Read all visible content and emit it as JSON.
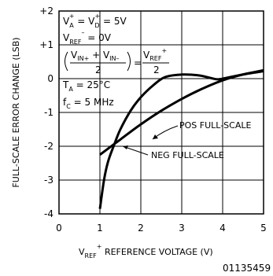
{
  "chart_data": {
    "type": "line",
    "title": "",
    "xlabel": {
      "main": "V",
      "sub": "REF",
      "sup": "+",
      "rest": "  REFERENCE VOLTAGE (V)"
    },
    "ylabel": "FULL-SCALE ERROR CHANGE (LSB)",
    "xlim": [
      0,
      5
    ],
    "ylim": [
      -4,
      2
    ],
    "x_ticks": [
      "0",
      "1",
      "2",
      "3",
      "4",
      "5"
    ],
    "y_ticks": [
      "-4",
      "-3",
      "-2",
      "-1",
      "0",
      "+1",
      "+2"
    ],
    "grid": true,
    "series": [
      {
        "name": "POS FULL-SCALE",
        "points": [
          [
            1.0,
            -2.25
          ],
          [
            1.5,
            -1.8
          ],
          [
            2.0,
            -1.35
          ],
          [
            2.5,
            -0.95
          ],
          [
            3.0,
            -0.6
          ],
          [
            3.5,
            -0.3
          ],
          [
            4.0,
            -0.05
          ],
          [
            4.5,
            0.12
          ],
          [
            5.0,
            0.22
          ]
        ]
      },
      {
        "name": "NEG FULL-SCALE",
        "points": [
          [
            1.0,
            -3.85
          ],
          [
            1.1,
            -3.0
          ],
          [
            1.2,
            -2.45
          ],
          [
            1.35,
            -1.95
          ],
          [
            1.5,
            -1.5
          ],
          [
            1.75,
            -0.95
          ],
          [
            2.0,
            -0.55
          ],
          [
            2.3,
            -0.2
          ],
          [
            2.6,
            0.05
          ],
          [
            3.0,
            0.12
          ],
          [
            3.4,
            0.1
          ],
          [
            3.7,
            0.02
          ],
          [
            3.9,
            -0.02
          ],
          [
            4.2,
            0.05
          ],
          [
            4.6,
            0.15
          ],
          [
            5.0,
            0.25
          ]
        ]
      }
    ]
  },
  "conditions": {
    "line1": {
      "a": "V",
      "a_sup": "+",
      "a_sub": "A",
      "eq1": " = V",
      "b_sub": "D",
      "b_sup": "+",
      "rest": " = 5V"
    },
    "line2": {
      "main": "V",
      "sub": "REF",
      "sup": "–",
      "rest": " = 0V"
    },
    "line3": {
      "num_v1": "V",
      "num_s1": "IN+",
      "plus": " + V",
      "num_s2": "IN–",
      "den": "2",
      "eq": "=",
      "rnum": "V",
      "rnum_sub": "REF",
      "rnum_sup": "+",
      "rden": "2"
    },
    "line4": {
      "main": "T",
      "sub": "A",
      "rest": " = 25°C"
    },
    "line5": {
      "main": "f",
      "sub": "C",
      "rest": " = 5 MHz"
    }
  },
  "figure_id": "01135459"
}
